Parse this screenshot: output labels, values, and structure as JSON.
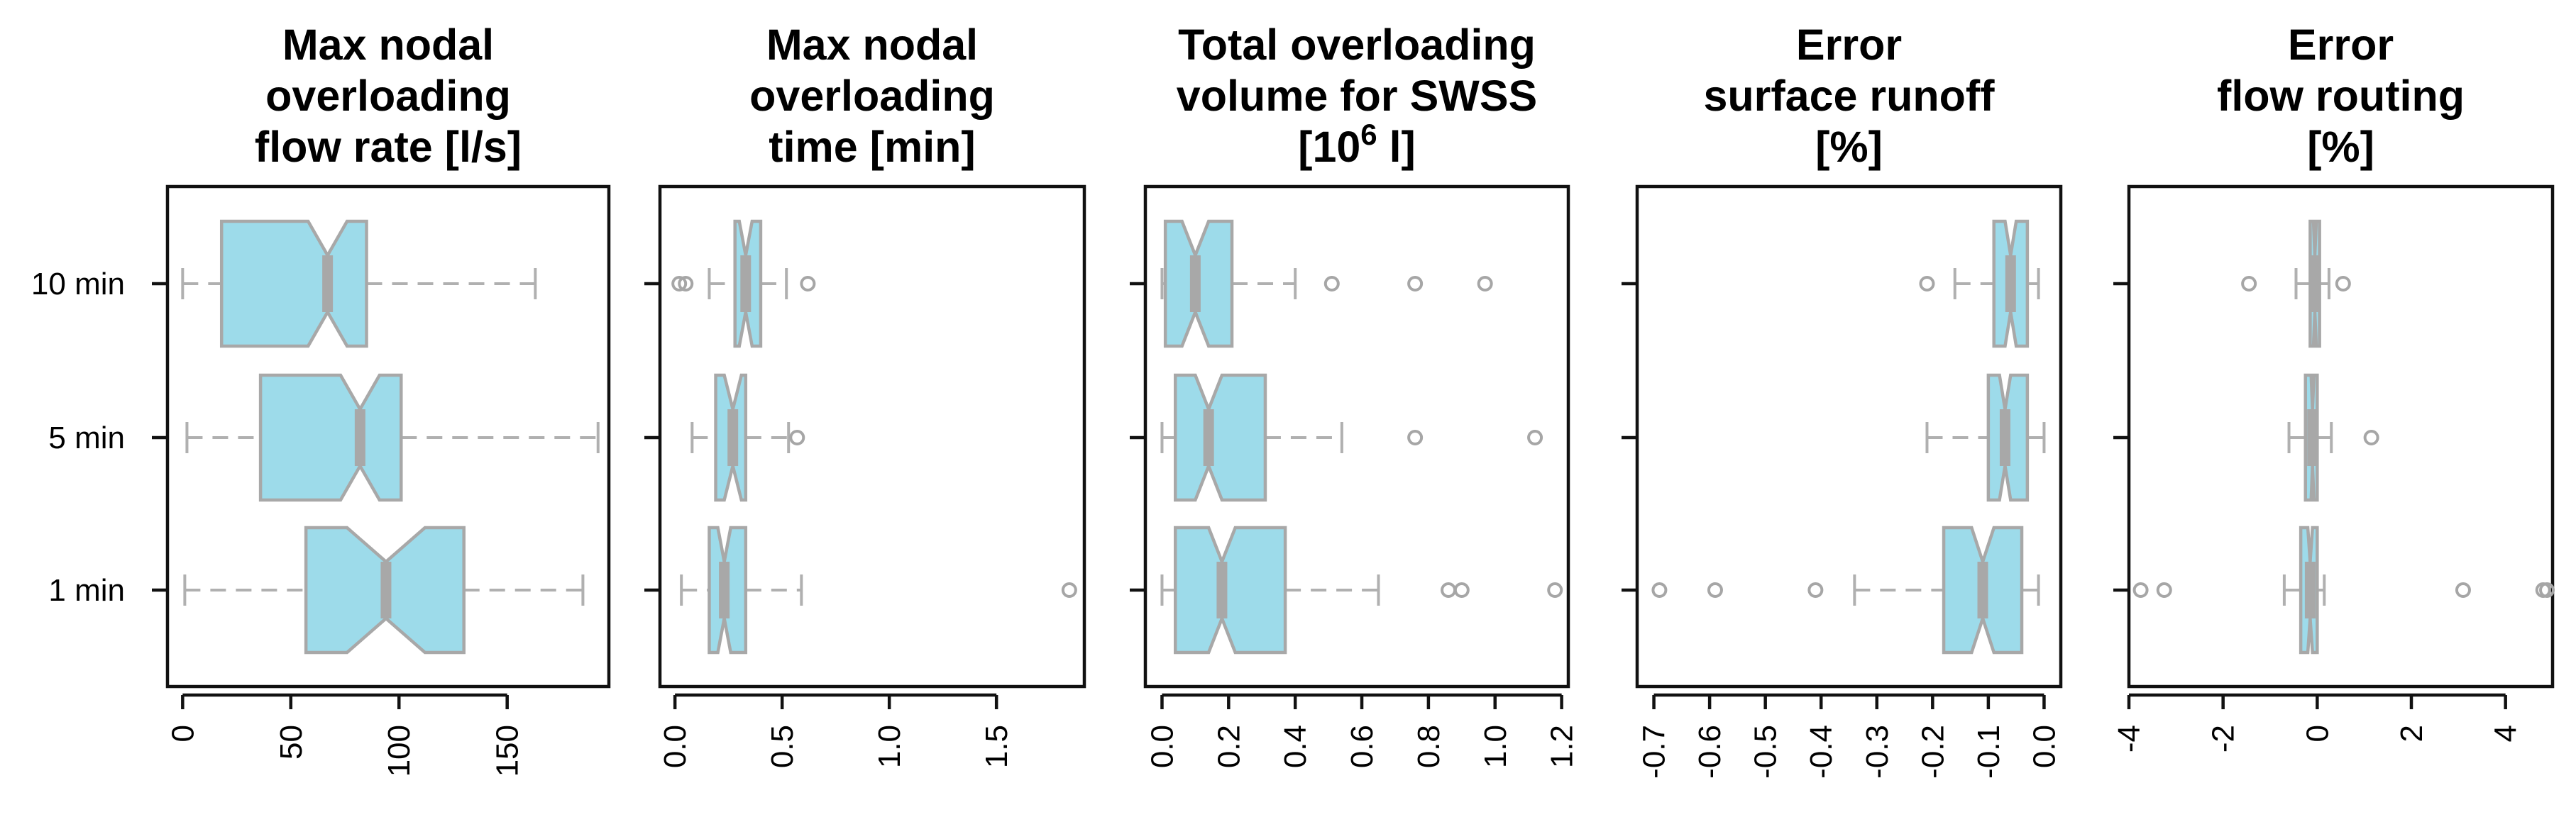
{
  "colors": {
    "box_fill": "#9ddbea",
    "box_stroke": "#a8a8a8",
    "whisker": "#b0b0b0",
    "outlier": "#a6a6a6",
    "axis": "#111111"
  },
  "chart_data": [
    {
      "type": "boxplot",
      "orientation": "horizontal",
      "notched": true,
      "title_lines": [
        "Max nodal",
        "overloading",
        "flow rate [l/s]"
      ],
      "categories": [
        "10 min",
        "5 min",
        "1 min"
      ],
      "xlim": [
        -7,
        197
      ],
      "xticks": [
        0,
        50,
        100,
        150
      ],
      "xtick_labels": [
        "0",
        "50",
        "100",
        "150"
      ],
      "boxes": [
        {
          "category": "10 min",
          "min": 0,
          "q1": 18,
          "median": 67,
          "q3": 85,
          "max": 163,
          "notch_lo": 58,
          "notch_hi": 76,
          "outliers": []
        },
        {
          "category": "5 min",
          "min": 2,
          "q1": 36,
          "median": 82,
          "q3": 101,
          "max": 192,
          "notch_lo": 73,
          "notch_hi": 91,
          "outliers": []
        },
        {
          "category": "1 min",
          "min": 1,
          "q1": 57,
          "median": 94,
          "q3": 130,
          "max": 185,
          "notch_lo": 76,
          "notch_hi": 112,
          "outliers": []
        }
      ]
    },
    {
      "type": "boxplot",
      "orientation": "horizontal",
      "notched": true,
      "title_lines": [
        "Max nodal",
        "overloading",
        "time [min]"
      ],
      "categories": [
        "10 min",
        "5 min",
        "1 min"
      ],
      "xlim": [
        -0.07,
        1.91
      ],
      "xticks": [
        0,
        0.5,
        1,
        1.5
      ],
      "xtick_labels": [
        "0.0",
        "0.5",
        "1.0",
        "1.5"
      ],
      "boxes": [
        {
          "category": "10 min",
          "min": 0.16,
          "q1": 0.28,
          "median": 0.33,
          "q3": 0.4,
          "max": 0.52,
          "notch_lo": 0.3,
          "notch_hi": 0.36,
          "outliers": [
            0.02,
            0.05,
            0.62
          ]
        },
        {
          "category": "5 min",
          "min": 0.08,
          "q1": 0.19,
          "median": 0.27,
          "q3": 0.33,
          "max": 0.53,
          "notch_lo": 0.23,
          "notch_hi": 0.31,
          "outliers": [
            0.57
          ]
        },
        {
          "category": "1 min",
          "min": 0.03,
          "q1": 0.16,
          "median": 0.23,
          "q3": 0.33,
          "max": 0.59,
          "notch_lo": 0.2,
          "notch_hi": 0.26,
          "outliers": [
            1.84
          ]
        }
      ]
    },
    {
      "type": "boxplot",
      "orientation": "horizontal",
      "notched": true,
      "title_lines": [
        "Total overloading",
        "volume for SWSS"
      ],
      "title_units": {
        "prefix": "[10",
        "superscript": "6",
        "suffix": " l]"
      },
      "categories": [
        "10 min",
        "5 min",
        "1 min"
      ],
      "xlim": [
        -0.05,
        1.22
      ],
      "xticks": [
        0,
        0.2,
        0.4,
        0.6,
        0.8,
        1.0,
        1.2
      ],
      "xtick_labels": [
        "0.0",
        "0.2",
        "0.4",
        "0.6",
        "0.8",
        "1.0",
        "1.2"
      ],
      "boxes": [
        {
          "category": "10 min",
          "min": 0,
          "q1": 0.01,
          "median": 0.1,
          "q3": 0.21,
          "max": 0.4,
          "notch_lo": 0.06,
          "notch_hi": 0.14,
          "outliers": [
            0.51,
            0.76,
            0.97
          ]
        },
        {
          "category": "5 min",
          "min": 0,
          "q1": 0.04,
          "median": 0.14,
          "q3": 0.31,
          "max": 0.54,
          "notch_lo": 0.1,
          "notch_hi": 0.18,
          "outliers": [
            0.76,
            1.12
          ]
        },
        {
          "category": "1 min",
          "min": 0,
          "q1": 0.04,
          "median": 0.18,
          "q3": 0.37,
          "max": 0.65,
          "notch_lo": 0.14,
          "notch_hi": 0.22,
          "outliers": [
            0.86,
            0.9,
            1.18
          ]
        }
      ]
    },
    {
      "type": "boxplot",
      "orientation": "horizontal",
      "notched": true,
      "title_lines": [
        "Error",
        "surface runoff",
        "[%]"
      ],
      "categories": [
        "10 min",
        "5 min",
        "1 min"
      ],
      "xlim": [
        -0.73,
        0.03
      ],
      "xticks": [
        -0.7,
        -0.6,
        -0.5,
        -0.4,
        -0.3,
        -0.2,
        -0.1,
        0.0
      ],
      "xtick_labels": [
        "-0.7",
        "-0.6",
        "-0.5",
        "-0.4",
        "-0.3",
        "-0.2",
        "-0.1",
        "0.0"
      ],
      "boxes": [
        {
          "category": "10 min",
          "min": -0.16,
          "q1": -0.09,
          "median": -0.06,
          "q3": -0.03,
          "max": -0.01,
          "notch_lo": -0.07,
          "notch_hi": -0.05,
          "outliers": [
            -0.21
          ]
        },
        {
          "category": "5 min",
          "min": -0.21,
          "q1": -0.1,
          "median": -0.07,
          "q3": -0.03,
          "max": 0.0,
          "notch_lo": -0.08,
          "notch_hi": -0.06,
          "outliers": []
        },
        {
          "category": "1 min",
          "min": -0.34,
          "q1": -0.18,
          "median": -0.11,
          "q3": -0.04,
          "max": -0.01,
          "notch_lo": -0.13,
          "notch_hi": -0.09,
          "outliers": [
            -0.69,
            -0.59,
            -0.41
          ]
        }
      ]
    },
    {
      "type": "boxplot",
      "orientation": "horizontal",
      "notched": true,
      "title_lines": [
        "Error",
        "flow routing",
        "[%]"
      ],
      "categories": [
        "10 min",
        "5 min",
        "1 min"
      ],
      "xlim": [
        -4.0,
        5.0
      ],
      "xticks": [
        -4,
        -2,
        0,
        2,
        4
      ],
      "xtick_labels": [
        "-4",
        "-2",
        "0",
        "2",
        "4"
      ],
      "boxes": [
        {
          "category": "10 min",
          "min": -0.45,
          "q1": -0.15,
          "median": -0.05,
          "q3": 0.05,
          "max": 0.25,
          "notch_lo": -0.08,
          "notch_hi": -0.02,
          "outliers": [
            -1.45,
            0.55
          ]
        },
        {
          "category": "5 min",
          "min": -0.6,
          "q1": -0.25,
          "median": -0.1,
          "q3": 0.0,
          "max": 0.3,
          "notch_lo": -0.13,
          "notch_hi": -0.07,
          "outliers": [
            1.15
          ]
        },
        {
          "category": "1 min",
          "min": -0.7,
          "q1": -0.35,
          "median": -0.15,
          "q3": 0.0,
          "max": 0.15,
          "notch_lo": -0.2,
          "notch_hi": -0.1,
          "outliers": [
            -3.75,
            -3.25,
            3.1,
            4.8,
            4.88
          ]
        }
      ]
    }
  ]
}
